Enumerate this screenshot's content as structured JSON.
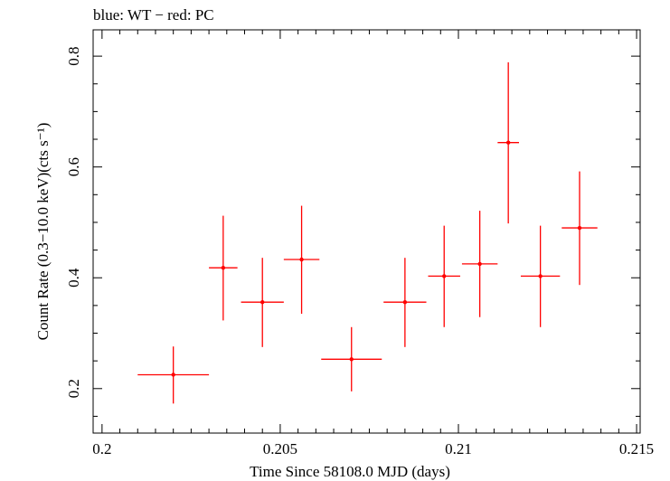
{
  "chart_data": {
    "type": "scatter",
    "title": "blue: WT − red: PC",
    "xlabel": "Time Since 58108.0 MJD (days)",
    "ylabel": "Count Rate (0.3−10.0 keV)(cts s⁻¹)",
    "xlim": [
      0.19975,
      0.2151
    ],
    "ylim": [
      0.1197,
      0.8475
    ],
    "x_ticks": [
      0.2,
      0.205,
      0.21,
      0.215
    ],
    "x_tick_labels": [
      "0.2",
      "0.205",
      "0.21",
      "0.215"
    ],
    "y_ticks": [
      0.2,
      0.4,
      0.6,
      0.8
    ],
    "y_tick_labels": [
      "0.2",
      "0.4",
      "0.6",
      "0.8"
    ],
    "grid": false,
    "series": [
      {
        "name": "PC",
        "color": "#ff0000",
        "points": [
          {
            "x": 0.202,
            "xerr": 0.001,
            "y": 0.225,
            "yerr_low": 0.052,
            "yerr_high": 0.051
          },
          {
            "x": 0.2034,
            "xerr": 0.0004,
            "y": 0.418,
            "yerr_low": 0.095,
            "yerr_high": 0.094
          },
          {
            "x": 0.2045,
            "xerr": 0.0006,
            "y": 0.356,
            "yerr_low": 0.081,
            "yerr_high": 0.08
          },
          {
            "x": 0.2056,
            "xerr": 0.0005,
            "y": 0.433,
            "yerr_low": 0.098,
            "yerr_high": 0.097
          },
          {
            "x": 0.207,
            "xerr": 0.00085,
            "y": 0.253,
            "yerr_low": 0.058,
            "yerr_high": 0.058
          },
          {
            "x": 0.2085,
            "xerr": 0.0006,
            "y": 0.356,
            "yerr_low": 0.081,
            "yerr_high": 0.08
          },
          {
            "x": 0.2096,
            "xerr": 0.00045,
            "y": 0.403,
            "yerr_low": 0.092,
            "yerr_high": 0.091
          },
          {
            "x": 0.2106,
            "xerr": 0.0005,
            "y": 0.425,
            "yerr_low": 0.096,
            "yerr_high": 0.096
          },
          {
            "x": 0.2114,
            "xerr": 0.0003,
            "y": 0.644,
            "yerr_low": 0.146,
            "yerr_high": 0.145
          },
          {
            "x": 0.2123,
            "xerr": 0.00055,
            "y": 0.403,
            "yerr_low": 0.092,
            "yerr_high": 0.091
          },
          {
            "x": 0.2134,
            "xerr": 0.0005,
            "y": 0.49,
            "yerr_low": 0.103,
            "yerr_high": 0.102
          }
        ]
      }
    ]
  }
}
